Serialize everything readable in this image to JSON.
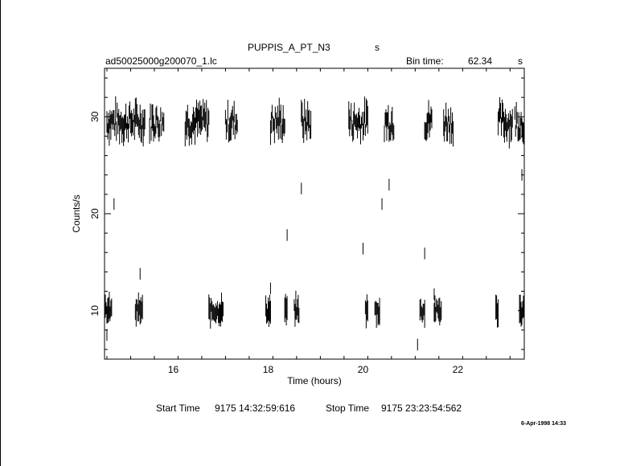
{
  "header": {
    "object_name": "PUPPIS_A_PT_N3",
    "object_suffix": "s",
    "file_name": "ad50025000g200070_1.lc",
    "bin_label": "Bin time:",
    "bin_value": "62.34",
    "bin_unit": "s"
  },
  "footer": {
    "start_label": "Start Time",
    "start_value": "9175  14:32:59:616",
    "stop_label": "Stop Time",
    "stop_value": "9175  23:23:54:562",
    "stamp": "6-Apr-1998 14:33"
  },
  "chart_data": {
    "type": "scatter",
    "xlabel": "Time (hours)",
    "ylabel": "Counts/s",
    "xlim": [
      14.55,
      23.4
    ],
    "ylim": [
      5,
      35
    ],
    "x_ticks": [
      16,
      18,
      20,
      22
    ],
    "y_ticks": [
      10,
      20,
      30
    ],
    "grid": false,
    "series": [
      {
        "high_state_segments": [
          [
            14.6,
            15.0
          ],
          [
            15.0,
            15.4
          ],
          [
            15.5,
            15.8
          ],
          [
            16.25,
            16.75
          ],
          [
            17.1,
            17.35
          ],
          [
            18.05,
            18.35
          ],
          [
            18.7,
            18.9
          ],
          [
            19.7,
            20.1
          ],
          [
            20.45,
            20.65
          ],
          [
            21.3,
            21.45
          ],
          [
            21.7,
            21.9
          ],
          [
            22.85,
            23.15
          ],
          [
            23.2,
            23.4
          ]
        ],
        "high_state_level": 29.5,
        "low_state_segments": [
          [
            14.55,
            14.7
          ],
          [
            15.2,
            15.35
          ],
          [
            16.75,
            17.05
          ],
          [
            17.95,
            18.05
          ],
          [
            18.35,
            18.4
          ],
          [
            18.55,
            18.65
          ],
          [
            20.05,
            20.1
          ],
          [
            20.25,
            20.35
          ],
          [
            21.2,
            21.3
          ],
          [
            21.5,
            21.65
          ],
          [
            22.8,
            22.85
          ],
          [
            23.3,
            23.4
          ]
        ],
        "low_state_level": 10.0,
        "isolated_points": [
          {
            "x": 14.6,
            "y": 7.5
          },
          {
            "x": 14.75,
            "y": 21.0
          },
          {
            "x": 15.3,
            "y": 13.8
          },
          {
            "x": 18.05,
            "y": 12.3
          },
          {
            "x": 18.4,
            "y": 17.8
          },
          {
            "x": 18.7,
            "y": 22.6
          },
          {
            "x": 20.0,
            "y": 16.4
          },
          {
            "x": 20.4,
            "y": 21.0
          },
          {
            "x": 20.55,
            "y": 23.0
          },
          {
            "x": 21.15,
            "y": 6.5
          },
          {
            "x": 21.3,
            "y": 15.9
          },
          {
            "x": 21.5,
            "y": 11.7
          },
          {
            "x": 23.35,
            "y": 24.0
          }
        ]
      }
    ]
  }
}
